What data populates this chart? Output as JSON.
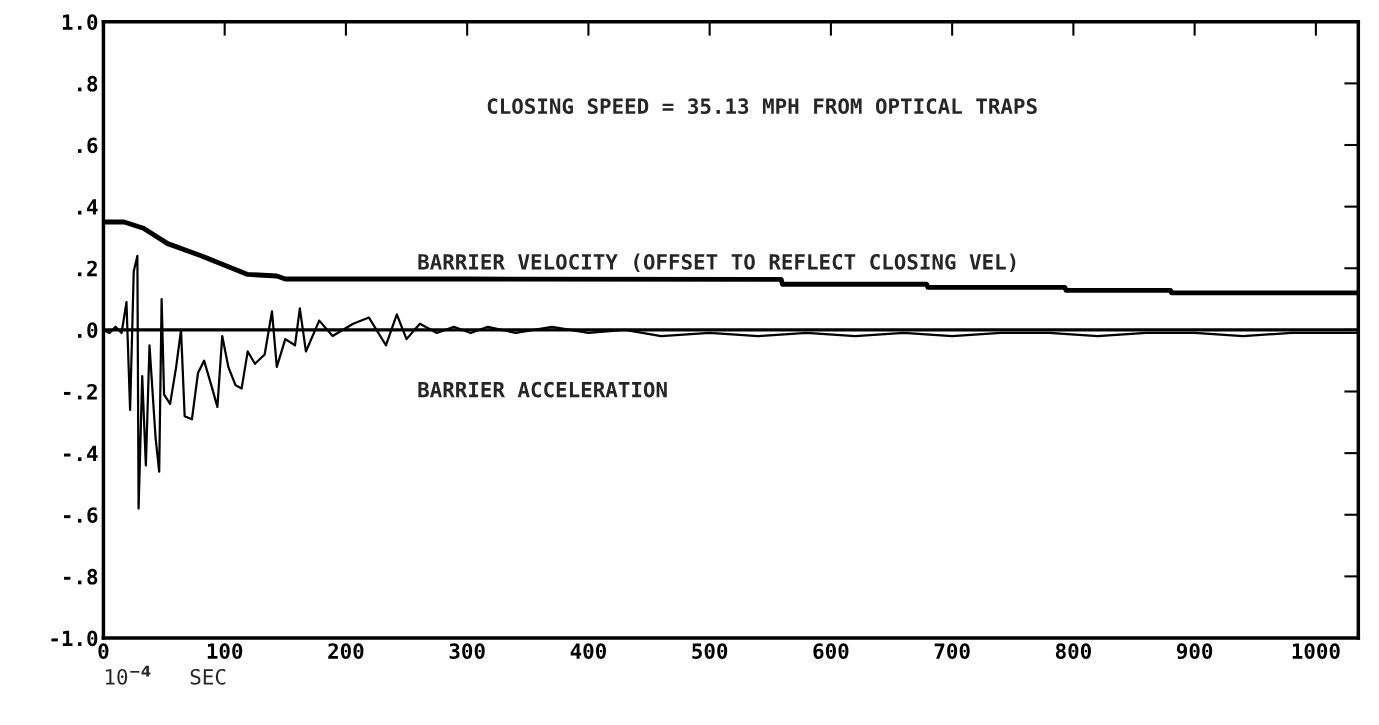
{
  "chart_data": {
    "type": "line",
    "xlabel": "10$^{−4}$   SEC",
    "annotations": [
      "CLOSING SPEED = 35.13 MPH FROM OPTICAL TRAPS"
    ],
    "xlim": [
      0,
      1035
    ],
    "xticks": [
      0,
      100,
      200,
      300,
      400,
      500,
      600,
      700,
      800,
      900,
      1000
    ],
    "ylim": [
      -1.0,
      1.0
    ],
    "yticks": [
      {
        "value": 1.0,
        "label": "1.0"
      },
      {
        "value": 0.8,
        "label": ".8"
      },
      {
        "value": 0.6,
        "label": ".6"
      },
      {
        "value": 0.4,
        "label": ".4"
      },
      {
        "value": 0.2,
        "label": ".2"
      },
      {
        "value": 0,
        "label": ".0"
      },
      {
        "value": -0.2,
        "label": "-.2"
      },
      {
        "value": -0.4,
        "label": "-.4"
      },
      {
        "value": -0.6,
        "label": "-.6"
      },
      {
        "value": -0.8,
        "label": "-.8"
      },
      {
        "value": -1.0,
        "label": "-1.0"
      }
    ],
    "grid": false,
    "legend": false,
    "marker": "none",
    "line_style": "solid",
    "ref_lines": [
      {
        "axis": "y",
        "value": 0,
        "label": null,
        "color": "#000000"
      }
    ],
    "series": [
      {
        "name": "BARRIER VELOCITY (OFFSET TO REFLECT CLOSING VEL)",
        "color": "#000000",
        "x": [
          0,
          17,
          33,
          53,
          81,
          100,
          119,
          143,
          150,
          300,
          559,
          560,
          679,
          680,
          793,
          794,
          880,
          881,
          1035
        ],
        "values": [
          0.35,
          0.35,
          0.33,
          0.28,
          0.24,
          0.21,
          0.18,
          0.175,
          0.165,
          0.165,
          0.164,
          0.148,
          0.148,
          0.138,
          0.138,
          0.128,
          0.128,
          0.12,
          0.12
        ]
      },
      {
        "name": "BARRIER ACCELERATION",
        "color": "#000000",
        "x": [
          0,
          5,
          10,
          15,
          19,
          22,
          25,
          28,
          29,
          32,
          35,
          38,
          43,
          46,
          48,
          50,
          55,
          60,
          64,
          67,
          73,
          78,
          83,
          89,
          94,
          98,
          103,
          109,
          114,
          119,
          125,
          133,
          139,
          143,
          150,
          158,
          162,
          167,
          178,
          189,
          206,
          219,
          233,
          242,
          250,
          261,
          275,
          289,
          303,
          317,
          340,
          370,
          400,
          430,
          460,
          500,
          540,
          580,
          620,
          660,
          700,
          740,
          780,
          820,
          860,
          900,
          940,
          980,
          1020,
          1035
        ],
        "values": [
          0,
          -0.01,
          0.01,
          -0.01,
          0.09,
          -0.26,
          0.19,
          0.24,
          -0.58,
          -0.15,
          -0.44,
          -0.05,
          -0.35,
          -0.46,
          0.1,
          -0.21,
          -0.24,
          -0.12,
          0,
          -0.28,
          -0.29,
          -0.14,
          -0.1,
          -0.18,
          -0.25,
          -0.02,
          -0.12,
          -0.18,
          -0.19,
          -0.07,
          -0.11,
          -0.08,
          0.06,
          -0.12,
          -0.03,
          -0.05,
          0.07,
          -0.07,
          0.03,
          -0.02,
          0.02,
          0.04,
          -0.05,
          0.05,
          -0.03,
          0.02,
          -0.01,
          0.01,
          -0.01,
          0.01,
          -0.01,
          0.01,
          -0.01,
          0,
          -0.02,
          -0.01,
          -0.02,
          -0.01,
          -0.02,
          -0.01,
          -0.02,
          -0.01,
          -0.01,
          -0.02,
          -0.01,
          -0.01,
          -0.02,
          -0.01,
          -0.01,
          -0.01
        ]
      }
    ]
  }
}
